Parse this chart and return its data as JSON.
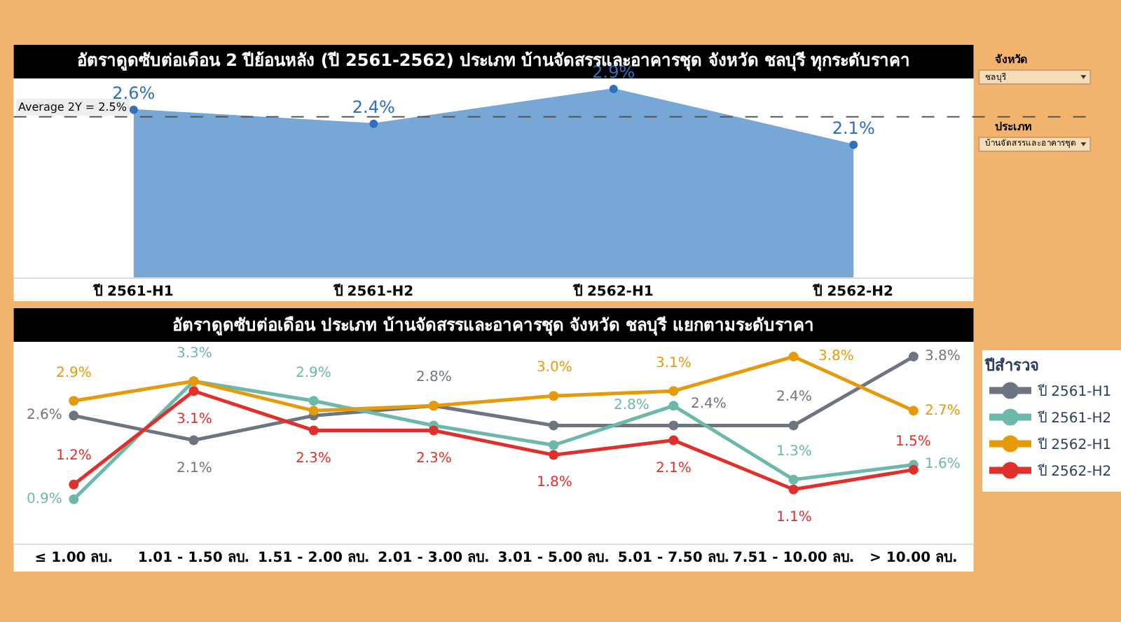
{
  "chart_data": [
    {
      "type": "area",
      "title": "อัตราดูดซับต่อเดือน 2 ปีย้อนหลัง (ปี 2561-2562) ประเภท บ้านจัดสรรและอาคารชุด จังหวัด ชลบุรี ทุกระดับราคา",
      "categories": [
        "ปี 2561-H1",
        "ปี 2561-H2",
        "ปี 2562-H1",
        "ปี 2562-H2"
      ],
      "series": [
        {
          "color": "#77a7d4",
          "values": [
            2.6,
            2.4,
            2.9,
            2.1
          ],
          "value_labels": [
            "2.6%",
            "2.4%",
            "2.9%",
            "2.1%"
          ]
        }
      ],
      "ylim": [
        0.2,
        3.05
      ],
      "tick_labels": "x",
      "marker": "circle",
      "ref_lines": [
        {
          "axis": "y",
          "value": 2.5,
          "label": "Average 2Y = 2.5%",
          "color": "#555555",
          "line_style": "dashed"
        }
      ]
    },
    {
      "type": "line",
      "title": "อัตราดูดซับต่อเดือน ประเภท บ้านจัดสรรและอาคารชุด จังหวัด ชลบุรี แยกตามระดับราคา",
      "legend_title": "ปีสำรวจ",
      "legend": "right",
      "categories": [
        "≤ 1.00 ลบ.",
        "1.01 - 1.50 ลบ.",
        "1.51 - 2.00 ลบ.",
        "2.01 - 3.00 ลบ.",
        "3.01 - 5.00 ลบ.",
        "5.01 - 7.50 ลบ.",
        "7.51 - 10.00 ลบ.",
        "> 10.00 ลบ."
      ],
      "series": [
        {
          "name": "ปี 2561-H1",
          "color": "#6e7582",
          "values": [
            2.6,
            2.1,
            2.6,
            2.8,
            2.4,
            2.4,
            2.4,
            3.8
          ],
          "value_labels": [
            "2.6%",
            "2.1%",
            null,
            "2.8%",
            null,
            "2.4%",
            "2.4%",
            "3.8%"
          ]
        },
        {
          "name": "ปี 2561-H2",
          "color": "#6cb8aa",
          "values": [
            0.9,
            3.3,
            2.9,
            2.4,
            2.0,
            2.8,
            1.3,
            1.6
          ],
          "value_labels": [
            "0.9%",
            "3.3%",
            "2.9%",
            null,
            null,
            "2.8%",
            "1.3%",
            "1.6%"
          ]
        },
        {
          "name": "ปี 2562-H1",
          "color": "#e59a0c",
          "values": [
            2.9,
            3.3,
            2.7,
            2.8,
            3.0,
            3.1,
            3.8,
            2.7
          ],
          "value_labels": [
            "2.9%",
            null,
            null,
            null,
            "3.0%",
            "3.1%",
            "3.8%",
            "2.7%"
          ]
        },
        {
          "name": "ปี 2562-H2",
          "color": "#e0302b",
          "values": [
            1.2,
            3.1,
            2.3,
            2.3,
            1.8,
            2.1,
            1.1,
            1.5
          ],
          "value_labels": [
            "1.2%",
            "3.1%",
            "2.3%",
            "2.3%",
            "1.8%",
            "2.1%",
            "1.1%",
            "1.5%"
          ]
        }
      ],
      "ylim": [
        0,
        4.1
      ],
      "tick_labels": "x",
      "marker": "circle",
      "line_style": "solid"
    },
    {
      "type": "other",
      "annotations": [
        "จังหวัด",
        "ชลบุรี",
        "ประเภท",
        "บ้านจัดสรรและอาคารชุด"
      ]
    }
  ]
}
